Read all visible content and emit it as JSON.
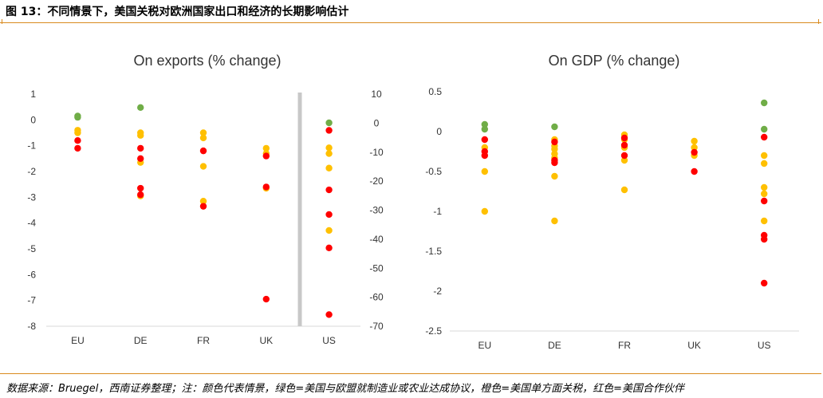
{
  "figure": {
    "title": "图 13：不同情景下，美国关税对欧洲国家出口和经济的长期影响估计",
    "source": "数据来源：Bruegel，西南证券整理；注：颜色代表情景，绿色=美国与欧盟就制造业或农业达成协议，橙色=美国单方面关税，红色=美国合作伙伴"
  },
  "colors": {
    "green": "#70ad47",
    "orange": "#ffc000",
    "red": "#ff0000",
    "separator": "#c8c8c8",
    "axis": "#d9d9d9"
  },
  "chart_data": [
    {
      "type": "scatter",
      "title": "On exports (% change)",
      "categories": [
        "EU",
        "DE",
        "FR",
        "UK",
        "US"
      ],
      "ylim": [
        -8,
        1
      ],
      "yticks": [
        "1",
        "0",
        "-1",
        "-2",
        "-3",
        "-4",
        "-5",
        "-6",
        "-7",
        "-8"
      ],
      "y2lim": [
        -70,
        10
      ],
      "y2ticks": [
        "10",
        "0",
        "-10",
        "-20",
        "-30",
        "-40",
        "-50",
        "-60",
        "-70"
      ],
      "secondary_axis_categories": [
        "US"
      ],
      "series": [
        {
          "name": "green",
          "color": "#70ad47",
          "points": [
            {
              "x": "EU",
              "y": 0.15
            },
            {
              "x": "EU",
              "y": 0.1
            },
            {
              "x": "DE",
              "y": 0.48
            },
            {
              "x": "US",
              "y": 0.1
            }
          ]
        },
        {
          "name": "orange",
          "color": "#ffc000",
          "points": [
            {
              "x": "EU",
              "y": -0.4
            },
            {
              "x": "EU",
              "y": -0.5
            },
            {
              "x": "DE",
              "y": -0.5
            },
            {
              "x": "DE",
              "y": -0.6
            },
            {
              "x": "DE",
              "y": -1.65
            },
            {
              "x": "DE",
              "y": -2.95
            },
            {
              "x": "FR",
              "y": -0.5
            },
            {
              "x": "FR",
              "y": -0.7
            },
            {
              "x": "FR",
              "y": -1.8
            },
            {
              "x": "FR",
              "y": -3.15
            },
            {
              "x": "UK",
              "y": -1.1
            },
            {
              "x": "UK",
              "y": -1.3
            },
            {
              "x": "UK",
              "y": -2.65
            },
            {
              "x": "US",
              "y": -8.5
            },
            {
              "x": "US",
              "y": -10.5
            },
            {
              "x": "US",
              "y": -15.5
            },
            {
              "x": "US",
              "y": -37
            }
          ]
        },
        {
          "name": "red",
          "color": "#ff0000",
          "points": [
            {
              "x": "EU",
              "y": -0.8
            },
            {
              "x": "EU",
              "y": -1.1
            },
            {
              "x": "DE",
              "y": -1.1
            },
            {
              "x": "DE",
              "y": -1.5
            },
            {
              "x": "DE",
              "y": -2.65
            },
            {
              "x": "DE",
              "y": -2.9
            },
            {
              "x": "FR",
              "y": -1.2
            },
            {
              "x": "FR",
              "y": -3.35
            },
            {
              "x": "UK",
              "y": -1.4
            },
            {
              "x": "UK",
              "y": -2.6
            },
            {
              "x": "UK",
              "y": -6.95
            },
            {
              "x": "US",
              "y": -2.5
            },
            {
              "x": "US",
              "y": -23
            },
            {
              "x": "US",
              "y": -31.5
            },
            {
              "x": "US",
              "y": -43
            },
            {
              "x": "US",
              "y": -66
            }
          ]
        }
      ]
    },
    {
      "type": "scatter",
      "title": "On GDP (% change)",
      "categories": [
        "EU",
        "DE",
        "FR",
        "UK",
        "US"
      ],
      "ylim": [
        -2.5,
        0.5
      ],
      "yticks": [
        "0.5",
        "0",
        "-0.5",
        "-1",
        "-1.5",
        "-2",
        "-2.5"
      ],
      "series": [
        {
          "name": "green",
          "color": "#70ad47",
          "points": [
            {
              "x": "EU",
              "y": 0.09
            },
            {
              "x": "EU",
              "y": 0.03
            },
            {
              "x": "DE",
              "y": 0.06
            },
            {
              "x": "US",
              "y": 0.36
            },
            {
              "x": "US",
              "y": 0.03
            }
          ]
        },
        {
          "name": "orange",
          "color": "#ffc000",
          "points": [
            {
              "x": "EU",
              "y": -0.2
            },
            {
              "x": "EU",
              "y": -0.5
            },
            {
              "x": "EU",
              "y": -1.0
            },
            {
              "x": "DE",
              "y": -0.1
            },
            {
              "x": "DE",
              "y": -0.18
            },
            {
              "x": "DE",
              "y": -0.22
            },
            {
              "x": "DE",
              "y": -0.28
            },
            {
              "x": "DE",
              "y": -0.33
            },
            {
              "x": "DE",
              "y": -0.56
            },
            {
              "x": "DE",
              "y": -1.12
            },
            {
              "x": "FR",
              "y": -0.04
            },
            {
              "x": "FR",
              "y": -0.1
            },
            {
              "x": "FR",
              "y": -0.2
            },
            {
              "x": "FR",
              "y": -0.36
            },
            {
              "x": "FR",
              "y": -0.73
            },
            {
              "x": "UK",
              "y": -0.12
            },
            {
              "x": "UK",
              "y": -0.2
            },
            {
              "x": "UK",
              "y": -0.3
            },
            {
              "x": "US",
              "y": -0.3
            },
            {
              "x": "US",
              "y": -0.4
            },
            {
              "x": "US",
              "y": -0.7
            },
            {
              "x": "US",
              "y": -0.78
            },
            {
              "x": "US",
              "y": -1.12
            }
          ]
        },
        {
          "name": "red",
          "color": "#ff0000",
          "points": [
            {
              "x": "EU",
              "y": -0.1
            },
            {
              "x": "EU",
              "y": -0.25
            },
            {
              "x": "EU",
              "y": -0.3
            },
            {
              "x": "DE",
              "y": -0.13
            },
            {
              "x": "DE",
              "y": -0.36
            },
            {
              "x": "DE",
              "y": -0.39
            },
            {
              "x": "FR",
              "y": -0.08
            },
            {
              "x": "FR",
              "y": -0.17
            },
            {
              "x": "FR",
              "y": -0.3
            },
            {
              "x": "UK",
              "y": -0.26
            },
            {
              "x": "UK",
              "y": -0.5
            },
            {
              "x": "US",
              "y": -0.07
            },
            {
              "x": "US",
              "y": -0.87
            },
            {
              "x": "US",
              "y": -1.3
            },
            {
              "x": "US",
              "y": -1.35
            },
            {
              "x": "US",
              "y": -1.9
            }
          ]
        }
      ]
    }
  ]
}
